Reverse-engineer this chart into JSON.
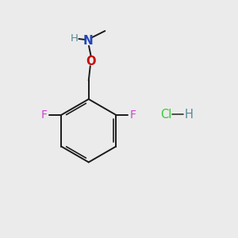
{
  "background_color": "#ebebeb",
  "bond_color": "#1a1a1a",
  "bond_width": 1.4,
  "atom_colors": {
    "F": "#cc44cc",
    "O": "#cc0000",
    "N": "#2244bb",
    "H_on_N": "#558899",
    "Cl": "#33cc33",
    "H_on_Cl": "#558899",
    "C": "#1a1a1a"
  },
  "font_size": 9.5,
  "hcl_font_size": 10.5
}
